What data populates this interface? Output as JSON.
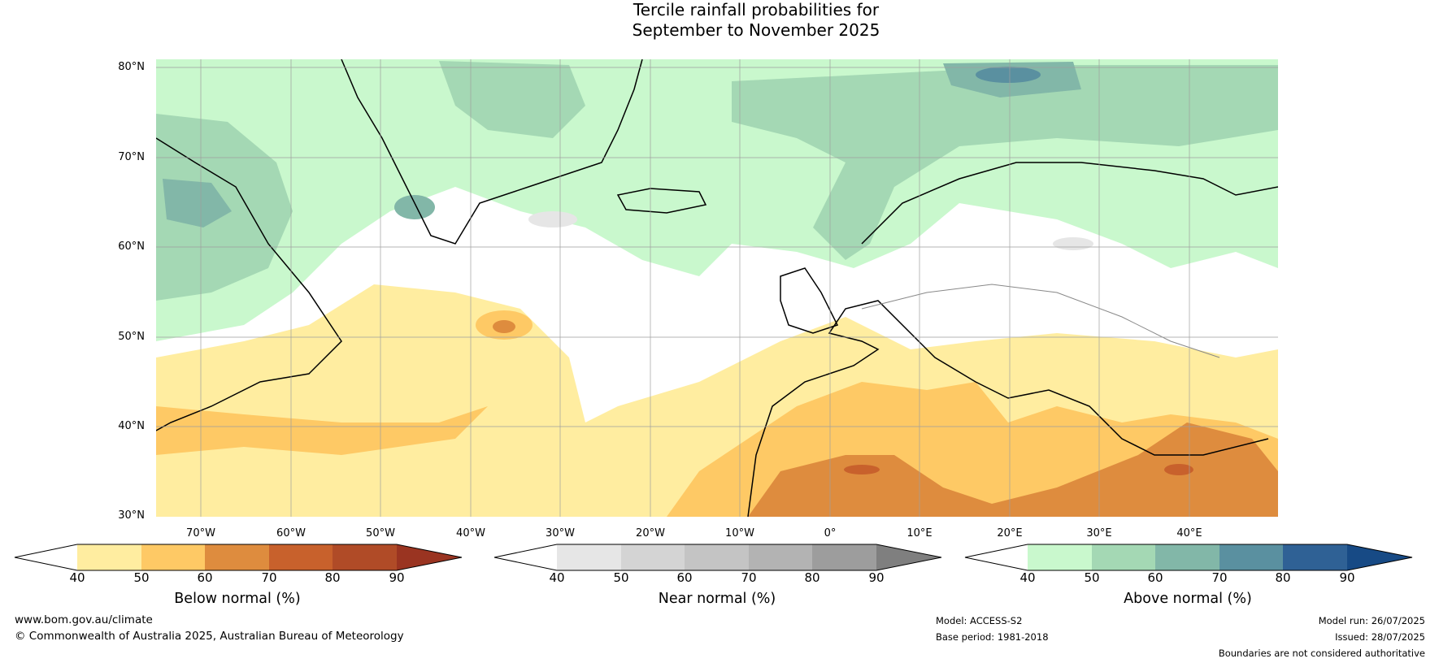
{
  "title": {
    "line1": "Tercile rainfall probabilities for",
    "line2": "September to November 2025"
  },
  "map": {
    "latitude_labels": [
      "80°N",
      "70°N",
      "60°N",
      "50°N",
      "40°N",
      "30°N"
    ],
    "longitude_labels": [
      "70°W",
      "60°W",
      "50°W",
      "40°W",
      "30°W",
      "20°W",
      "10°W",
      "0°",
      "10°E",
      "20°E",
      "30°E",
      "40°E"
    ]
  },
  "colorbars": [
    {
      "label": "Below normal (%)",
      "ticks": [
        "40",
        "50",
        "60",
        "70",
        "80",
        "90"
      ],
      "colors": [
        "#ffffff",
        "#ffeda0",
        "#fec965",
        "#de8c3e",
        "#c8612c",
        "#b04b27",
        "#9a3421"
      ]
    },
    {
      "label": "Near normal (%)",
      "ticks": [
        "40",
        "50",
        "60",
        "70",
        "80",
        "90"
      ],
      "colors": [
        "#ffffff",
        "#e6e6e6",
        "#d4d4d4",
        "#c4c4c4",
        "#b3b3b3",
        "#9d9d9d",
        "#7f7f7f"
      ]
    },
    {
      "label": "Above normal (%)",
      "ticks": [
        "40",
        "50",
        "60",
        "70",
        "80",
        "90"
      ],
      "colors": [
        "#ffffff",
        "#c9f8cd",
        "#a4d8b4",
        "#82b7a8",
        "#5a90a0",
        "#2f6195",
        "#174a85"
      ]
    }
  ],
  "footer": {
    "website": "www.bom.gov.au/climate",
    "copyright": "© Commonwealth of Australia 2025, Australian Bureau of Meteorology",
    "model": "Model: ACCESS-S2",
    "base_period": "Base period: 1981-2018",
    "model_run": "Model run: 26/07/2025",
    "issued": "Issued: 28/07/2025",
    "disclaimer": "Boundaries are not considered authoritative"
  }
}
